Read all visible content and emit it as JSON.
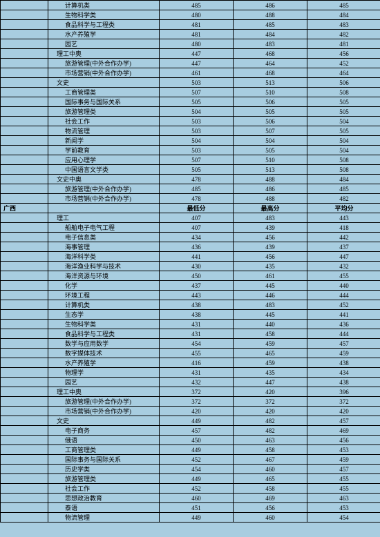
{
  "columns": [
    "",
    "name",
    "min",
    "max",
    "avg"
  ],
  "header_labels": {
    "region": "广西",
    "min": "最低分",
    "max": "最高分",
    "avg": "平均分"
  },
  "rows": [
    {
      "indent": 2,
      "name": "计算机类",
      "min": "485",
      "max": "486",
      "avg": "485"
    },
    {
      "indent": 2,
      "name": "生物科学类",
      "min": "480",
      "max": "488",
      "avg": "484"
    },
    {
      "indent": 2,
      "name": "食品科学与工程类",
      "min": "481",
      "max": "485",
      "avg": "483"
    },
    {
      "indent": 2,
      "name": "水产养殖学",
      "min": "481",
      "max": "484",
      "avg": "482"
    },
    {
      "indent": 2,
      "name": "园艺",
      "min": "480",
      "max": "483",
      "avg": "481"
    },
    {
      "indent": 1,
      "name": "理工中奥",
      "min": "447",
      "max": "468",
      "avg": "456"
    },
    {
      "indent": 2,
      "name": "旅游管理(中外合作办学)",
      "min": "447",
      "max": "464",
      "avg": "452"
    },
    {
      "indent": 2,
      "name": "市场营销(中外合作办学)",
      "min": "461",
      "max": "468",
      "avg": "464"
    },
    {
      "indent": 1,
      "name": "文史",
      "min": "503",
      "max": "513",
      "avg": "506"
    },
    {
      "indent": 2,
      "name": "工商管理类",
      "min": "507",
      "max": "510",
      "avg": "508"
    },
    {
      "indent": 2,
      "name": "国际事务与国际关系",
      "min": "505",
      "max": "506",
      "avg": "505"
    },
    {
      "indent": 2,
      "name": "旅游管理类",
      "min": "504",
      "max": "505",
      "avg": "505"
    },
    {
      "indent": 2,
      "name": "社会工作",
      "min": "503",
      "max": "506",
      "avg": "504"
    },
    {
      "indent": 2,
      "name": "物流管理",
      "min": "503",
      "max": "507",
      "avg": "505"
    },
    {
      "indent": 2,
      "name": "新闻学",
      "min": "504",
      "max": "504",
      "avg": "504"
    },
    {
      "indent": 2,
      "name": "学前教育",
      "min": "503",
      "max": "505",
      "avg": "504"
    },
    {
      "indent": 2,
      "name": "应用心理学",
      "min": "507",
      "max": "510",
      "avg": "508"
    },
    {
      "indent": 2,
      "name": "中国语言文学类",
      "min": "505",
      "max": "513",
      "avg": "508"
    },
    {
      "indent": 1,
      "name": "文史中奥",
      "min": "478",
      "max": "488",
      "avg": "484"
    },
    {
      "indent": 2,
      "name": "旅游管理(中外合作办学)",
      "min": "485",
      "max": "486",
      "avg": "485"
    },
    {
      "indent": 2,
      "name": "市场营销(中外合作办学)",
      "min": "478",
      "max": "488",
      "avg": "482"
    },
    {
      "header": true
    },
    {
      "indent": 1,
      "name": "理工",
      "min": "407",
      "max": "483",
      "avg": "443"
    },
    {
      "indent": 2,
      "name": "船舶电子电气工程",
      "min": "407",
      "max": "439",
      "avg": "418"
    },
    {
      "indent": 2,
      "name": "电子信息类",
      "min": "434",
      "max": "456",
      "avg": "442"
    },
    {
      "indent": 2,
      "name": "海事管理",
      "min": "436",
      "max": "439",
      "avg": "437"
    },
    {
      "indent": 2,
      "name": "海洋科学类",
      "min": "441",
      "max": "456",
      "avg": "447"
    },
    {
      "indent": 2,
      "name": "海洋渔业科学与技术",
      "min": "430",
      "max": "435",
      "avg": "432"
    },
    {
      "indent": 2,
      "name": "海洋资源与环境",
      "min": "450",
      "max": "461",
      "avg": "455"
    },
    {
      "indent": 2,
      "name": "化学",
      "min": "437",
      "max": "445",
      "avg": "440"
    },
    {
      "indent": 2,
      "name": "环境工程",
      "min": "443",
      "max": "446",
      "avg": "444"
    },
    {
      "indent": 2,
      "name": "计算机类",
      "min": "438",
      "max": "483",
      "avg": "452"
    },
    {
      "indent": 2,
      "name": "生态学",
      "min": "438",
      "max": "445",
      "avg": "441"
    },
    {
      "indent": 2,
      "name": "生物科学类",
      "min": "431",
      "max": "440",
      "avg": "436"
    },
    {
      "indent": 2,
      "name": "食品科学与工程类",
      "min": "431",
      "max": "458",
      "avg": "444"
    },
    {
      "indent": 2,
      "name": "数学与应用数学",
      "min": "454",
      "max": "459",
      "avg": "457"
    },
    {
      "indent": 2,
      "name": "数字媒体技术",
      "min": "455",
      "max": "465",
      "avg": "459"
    },
    {
      "indent": 2,
      "name": "水产养殖学",
      "min": "416",
      "max": "459",
      "avg": "438"
    },
    {
      "indent": 2,
      "name": "物理学",
      "min": "431",
      "max": "435",
      "avg": "434"
    },
    {
      "indent": 2,
      "name": "园艺",
      "min": "432",
      "max": "447",
      "avg": "438"
    },
    {
      "indent": 1,
      "name": "理工中奥",
      "min": "372",
      "max": "420",
      "avg": "396"
    },
    {
      "indent": 2,
      "name": "旅游管理(中外合作办学)",
      "min": "372",
      "max": "372",
      "avg": "372"
    },
    {
      "indent": 2,
      "name": "市场营销(中外合作办学)",
      "min": "420",
      "max": "420",
      "avg": "420"
    },
    {
      "indent": 1,
      "name": "文史",
      "min": "449",
      "max": "482",
      "avg": "457"
    },
    {
      "indent": 2,
      "name": "电子商务",
      "min": "457",
      "max": "482",
      "avg": "469"
    },
    {
      "indent": 2,
      "name": "俄语",
      "min": "450",
      "max": "463",
      "avg": "456"
    },
    {
      "indent": 2,
      "name": "工商管理类",
      "min": "449",
      "max": "458",
      "avg": "453"
    },
    {
      "indent": 2,
      "name": "国际事务与国际关系",
      "min": "452",
      "max": "467",
      "avg": "459"
    },
    {
      "indent": 2,
      "name": "历史学类",
      "min": "454",
      "max": "460",
      "avg": "457"
    },
    {
      "indent": 2,
      "name": "旅游管理类",
      "min": "449",
      "max": "465",
      "avg": "455"
    },
    {
      "indent": 2,
      "name": "社会工作",
      "min": "452",
      "max": "458",
      "avg": "455"
    },
    {
      "indent": 2,
      "name": "思想政治教育",
      "min": "460",
      "max": "469",
      "avg": "463"
    },
    {
      "indent": 2,
      "name": "泰语",
      "min": "451",
      "max": "456",
      "avg": "453"
    },
    {
      "indent": 2,
      "name": "物流管理",
      "min": "449",
      "max": "460",
      "avg": "454"
    }
  ]
}
